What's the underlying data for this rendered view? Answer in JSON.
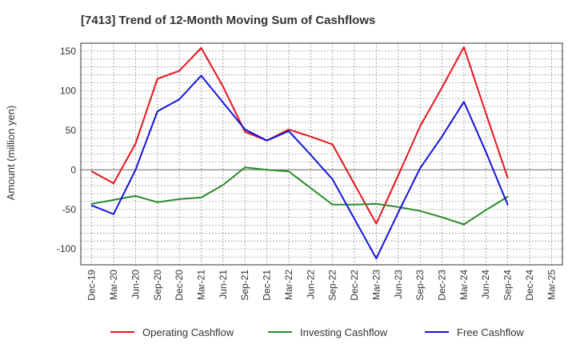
{
  "chart_data": {
    "type": "line",
    "title": "[7413]  Trend of 12-Month Moving Sum of Cashflows",
    "ylabel": "Amount (million yen)",
    "xlabel": "",
    "ylim": [
      -120,
      160
    ],
    "yticks": [
      150,
      100,
      50,
      0,
      -50,
      -100
    ],
    "grid": true,
    "legend_position": "bottom",
    "categories": [
      "Dec-19",
      "Mar-20",
      "Jun-20",
      "Sep-20",
      "Dec-20",
      "Mar-21",
      "Jun-21",
      "Sep-21",
      "Dec-21",
      "Mar-22",
      "Jun-22",
      "Sep-22",
      "Dec-22",
      "Mar-23",
      "Jun-23",
      "Sep-23",
      "Dec-23",
      "Mar-24",
      "Jun-24",
      "Sep-24",
      "Dec-24",
      "Mar-25"
    ],
    "series": [
      {
        "name": "Operating Cashflow",
        "color": "#e8141b",
        "values": [
          -2,
          -17,
          33,
          115,
          125,
          154,
          105,
          48,
          37,
          51,
          42,
          32,
          -18,
          -68,
          -7,
          55,
          104,
          155,
          72,
          -10,
          null,
          null
        ]
      },
      {
        "name": "Investing Cashflow",
        "color": "#2a8a2a",
        "values": [
          -43,
          -38,
          -33,
          -41,
          -37,
          -35,
          -19,
          3,
          0,
          -2,
          -23,
          -44,
          -44,
          -43,
          -47,
          -52,
          -60,
          -69,
          -51,
          -34,
          null,
          null
        ]
      },
      {
        "name": "Free Cashflow",
        "color": "#1414dc",
        "values": [
          -45,
          -56,
          0,
          74,
          89,
          119,
          85,
          51,
          37,
          49,
          19,
          -12,
          -62,
          -112,
          -54,
          2,
          42,
          86,
          23,
          -44,
          null,
          null
        ]
      }
    ]
  }
}
